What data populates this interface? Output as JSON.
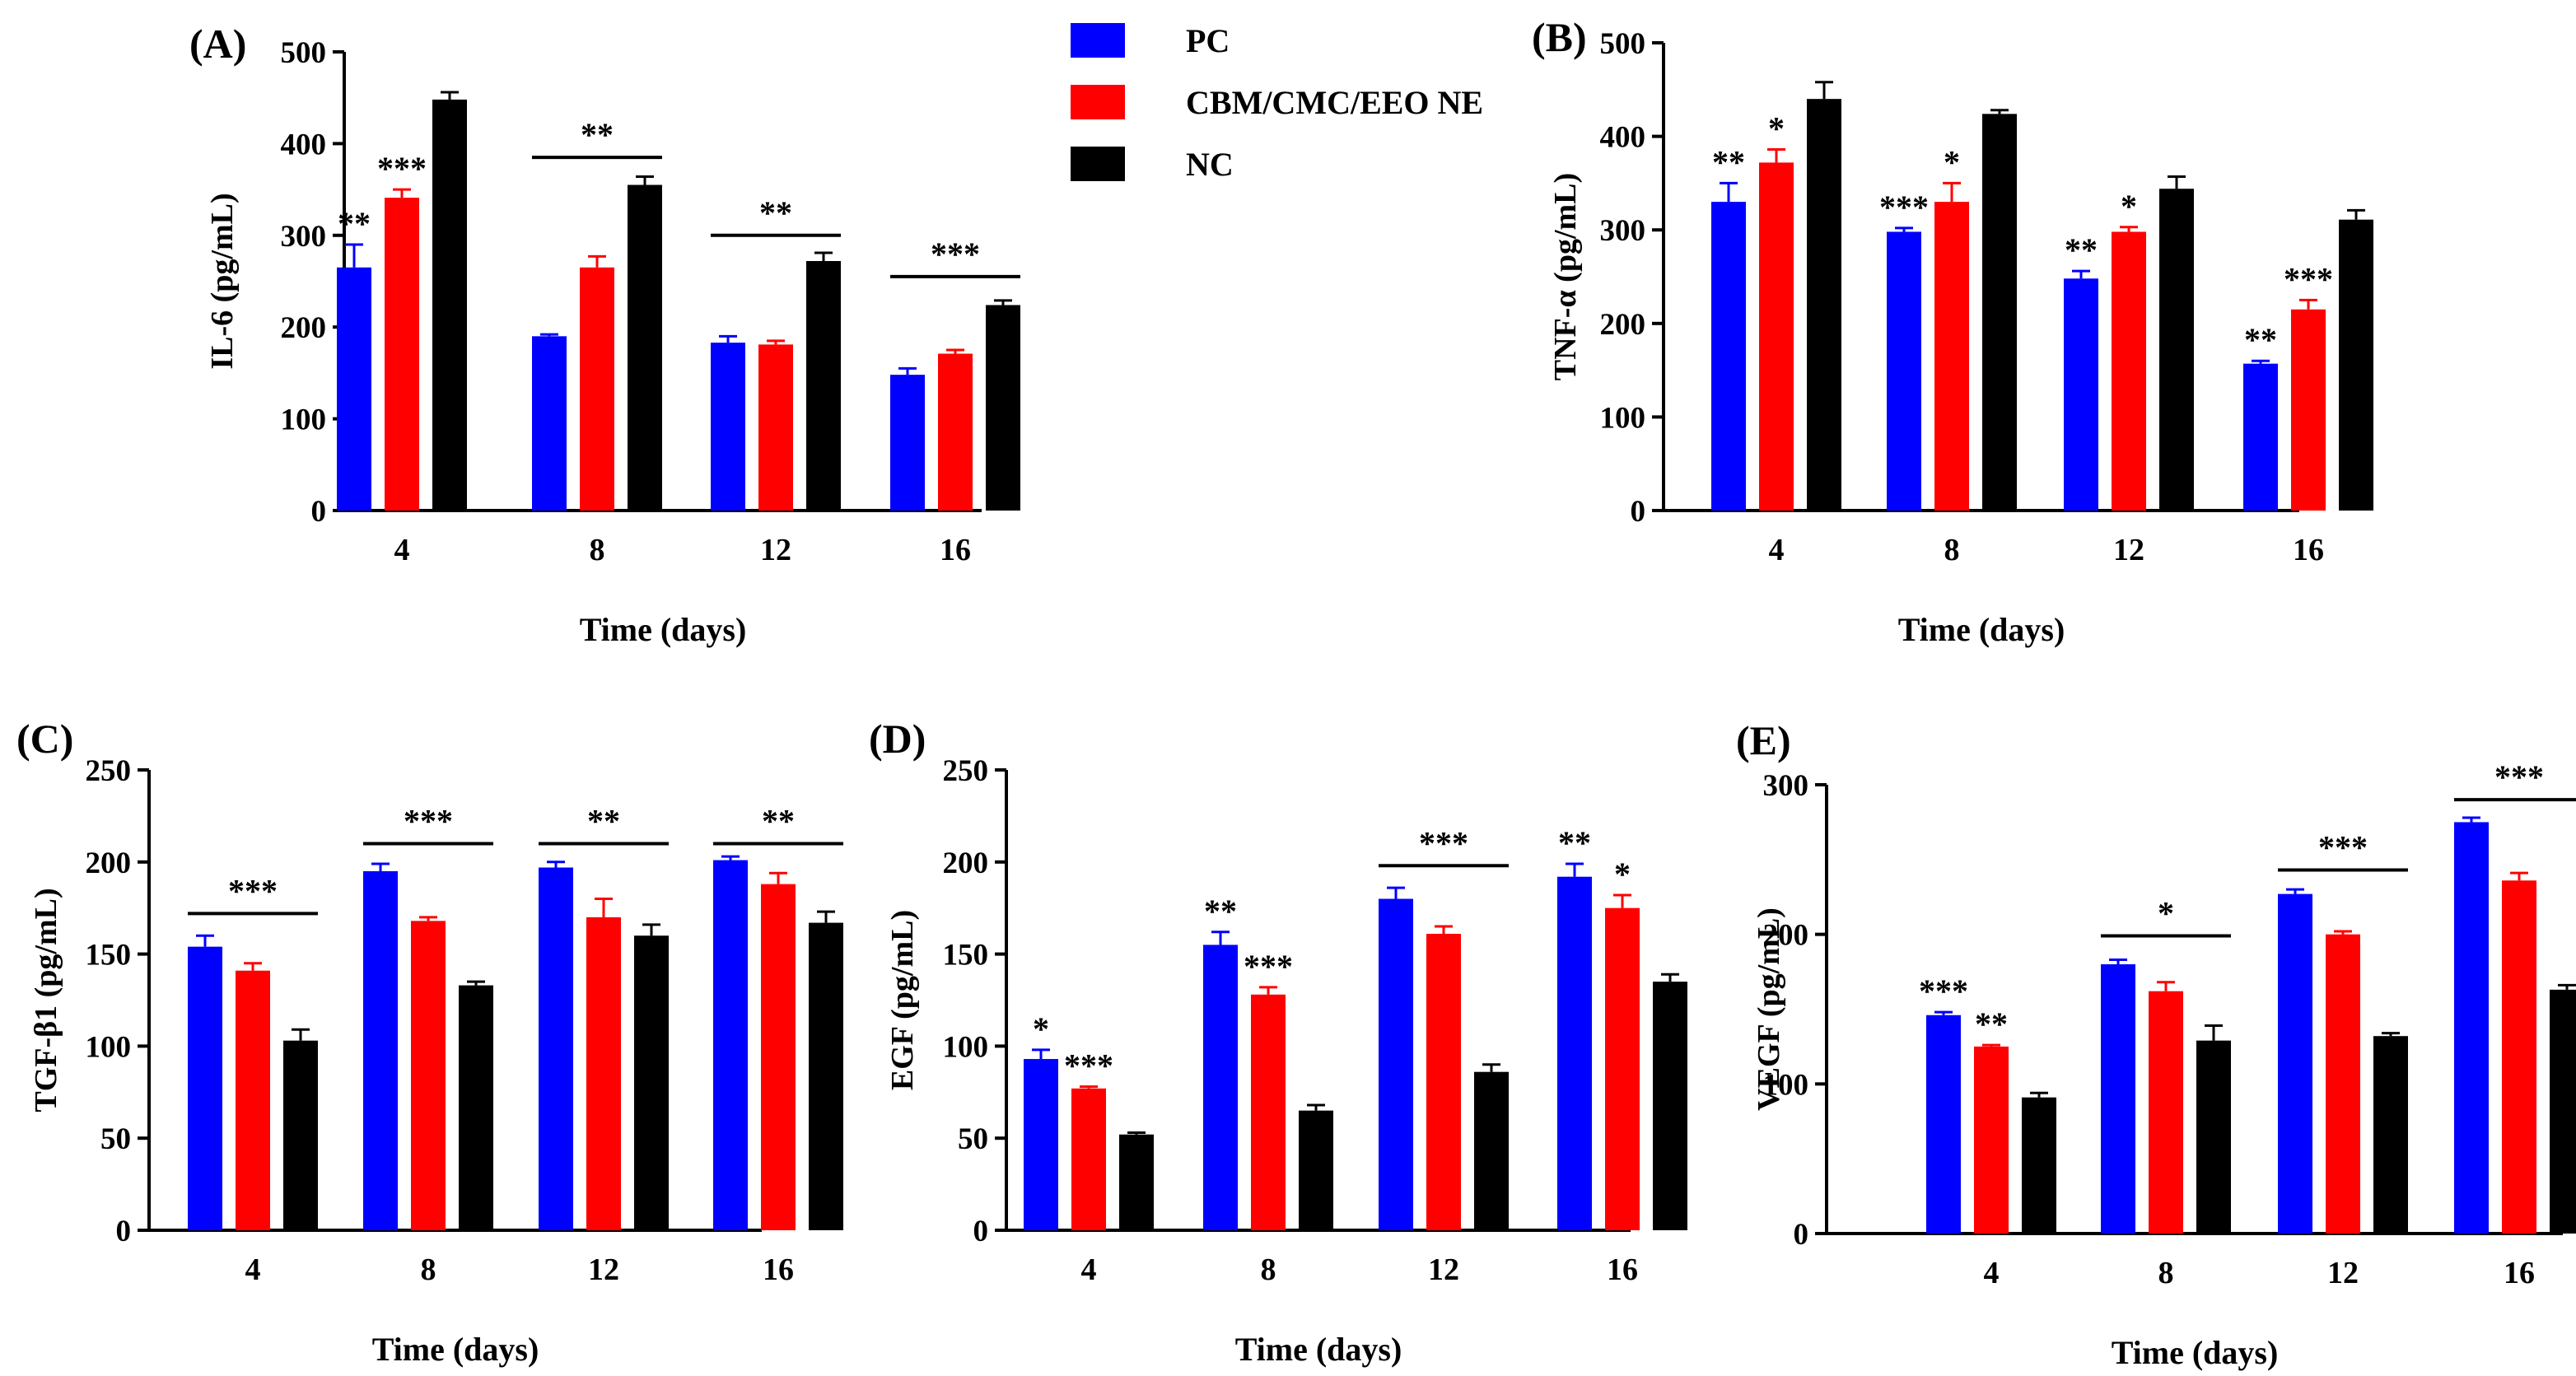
{
  "legend": {
    "entries": [
      {
        "name": "PC",
        "color": "#0000ff"
      },
      {
        "name": "CBM/CMC/EEO NE",
        "color": "#ff0000"
      },
      {
        "name": "NC",
        "color": "#000000"
      }
    ]
  },
  "chart_data": [
    {
      "id": "A",
      "type": "bar",
      "panel_label": "(A)",
      "xlabel": "Time (days)",
      "ylabel": "IL-6 (pg/mL)",
      "categories": [
        "4",
        "8",
        "12",
        "16"
      ],
      "ylim": [
        0,
        500
      ],
      "yticks": [
        0,
        100,
        200,
        300,
        400,
        500
      ],
      "series": [
        {
          "name": "PC",
          "color": "#0000ff",
          "values": [
            265,
            190,
            183,
            148
          ],
          "errors": [
            25,
            2,
            7,
            7
          ],
          "stars": [
            "**",
            "",
            "",
            ""
          ]
        },
        {
          "name": "CBM/CMC/EEO NE",
          "color": "#ff0000",
          "values": [
            341,
            265,
            181,
            171
          ],
          "errors": [
            9,
            12,
            4,
            4
          ],
          "stars": [
            "***",
            "",
            "",
            ""
          ]
        },
        {
          "name": "NC",
          "color": "#000000",
          "values": [
            448,
            355,
            272,
            224
          ],
          "errors": [
            8,
            9,
            9,
            5
          ],
          "stars": [
            "",
            "",
            "",
            ""
          ]
        }
      ],
      "brackets": [
        {
          "category": 1,
          "label": "**",
          "value": 385
        },
        {
          "category": 2,
          "label": "**",
          "value": 300
        },
        {
          "category": 3,
          "label": "***",
          "value": 255
        }
      ]
    },
    {
      "id": "B",
      "type": "bar",
      "panel_label": "(B)",
      "xlabel": "Time (days)",
      "ylabel": "TNF-α (pg/mL)",
      "categories": [
        "4",
        "8",
        "12",
        "16"
      ],
      "ylim": [
        0,
        500
      ],
      "yticks": [
        0,
        100,
        200,
        300,
        400,
        500
      ],
      "series": [
        {
          "name": "PC",
          "color": "#0000ff",
          "values": [
            330,
            298,
            248,
            157
          ],
          "errors": [
            20,
            4,
            8,
            3
          ],
          "stars": [
            "**",
            "***",
            "**",
            "**"
          ]
        },
        {
          "name": "CBM/CMC/EEO NE",
          "color": "#ff0000",
          "values": [
            372,
            330,
            298,
            215
          ],
          "errors": [
            14,
            20,
            5,
            10
          ],
          "stars": [
            "*",
            "*",
            "*",
            "***"
          ]
        },
        {
          "name": "NC",
          "color": "#000000",
          "values": [
            440,
            424,
            344,
            311
          ],
          "errors": [
            18,
            4,
            13,
            10
          ],
          "stars": [
            "",
            "",
            "",
            ""
          ]
        }
      ],
      "brackets": []
    },
    {
      "id": "C",
      "type": "bar",
      "panel_label": "(C)",
      "xlabel": "Time (days)",
      "ylabel": "TGF-β1 (pg/mL)",
      "categories": [
        "4",
        "8",
        "12",
        "16"
      ],
      "ylim": [
        0,
        250
      ],
      "yticks": [
        0,
        50,
        100,
        150,
        200,
        250
      ],
      "series": [
        {
          "name": "PC",
          "color": "#0000ff",
          "values": [
            154,
            195,
            197,
            201
          ],
          "errors": [
            6,
            4,
            3,
            2
          ],
          "stars": [
            "",
            "",
            "",
            ""
          ]
        },
        {
          "name": "CBM/CMC/EEO NE",
          "color": "#ff0000",
          "values": [
            141,
            168,
            170,
            188
          ],
          "errors": [
            4,
            2,
            10,
            6
          ],
          "stars": [
            "",
            "",
            "",
            ""
          ]
        },
        {
          "name": "NC",
          "color": "#000000",
          "values": [
            103,
            133,
            160,
            167
          ],
          "errors": [
            6,
            2,
            6,
            6
          ],
          "stars": [
            "",
            "",
            "",
            ""
          ]
        }
      ],
      "brackets": [
        {
          "category": 0,
          "label": "***",
          "value": 172
        },
        {
          "category": 1,
          "label": "***",
          "value": 210
        },
        {
          "category": 2,
          "label": "**",
          "value": 210
        },
        {
          "category": 3,
          "label": "**",
          "value": 210
        }
      ]
    },
    {
      "id": "D",
      "type": "bar",
      "panel_label": "(D)",
      "xlabel": "Time (days)",
      "ylabel": "EGF (pg/mL)",
      "categories": [
        "4",
        "8",
        "12",
        "16"
      ],
      "ylim": [
        0,
        250
      ],
      "yticks": [
        0,
        50,
        100,
        150,
        200,
        250
      ],
      "series": [
        {
          "name": "PC",
          "color": "#0000ff",
          "values": [
            93,
            155,
            180,
            192
          ],
          "errors": [
            5,
            7,
            6,
            7
          ],
          "stars": [
            "*",
            "**",
            "",
            "**"
          ]
        },
        {
          "name": "CBM/CMC/EEO NE",
          "color": "#ff0000",
          "values": [
            77,
            128,
            161,
            175
          ],
          "errors": [
            1,
            4,
            4,
            7
          ],
          "stars": [
            "***",
            "***",
            "",
            "*"
          ]
        },
        {
          "name": "NC",
          "color": "#000000",
          "values": [
            52,
            65,
            86,
            135
          ],
          "errors": [
            1,
            3,
            4,
            4
          ],
          "stars": [
            "",
            "",
            "",
            ""
          ]
        }
      ],
      "brackets": [
        {
          "category": 2,
          "label": "***",
          "value": 198
        }
      ]
    },
    {
      "id": "E",
      "type": "bar",
      "panel_label": "(E)",
      "xlabel": "Time (days)",
      "ylabel": "VEGF (pg/mL)",
      "categories": [
        "4",
        "8",
        "12",
        "16"
      ],
      "ylim": [
        0,
        300
      ],
      "yticks": [
        0,
        100,
        200,
        300
      ],
      "series": [
        {
          "name": "PC",
          "color": "#0000ff",
          "values": [
            146,
            180,
            227,
            275
          ],
          "errors": [
            2,
            3,
            3,
            3
          ],
          "stars": [
            "***",
            "",
            "",
            ""
          ]
        },
        {
          "name": "CBM/CMC/EEO NE",
          "color": "#ff0000",
          "values": [
            125,
            162,
            200,
            236
          ],
          "errors": [
            1,
            6,
            2,
            5
          ],
          "stars": [
            "**",
            "",
            "",
            ""
          ]
        },
        {
          "name": "NC",
          "color": "#000000",
          "values": [
            91,
            129,
            132,
            163
          ],
          "errors": [
            3,
            10,
            2,
            3
          ],
          "stars": [
            "",
            "",
            "",
            ""
          ]
        }
      ],
      "brackets": [
        {
          "category": 1,
          "label": "*",
          "value": 199
        },
        {
          "category": 2,
          "label": "***",
          "value": 243
        },
        {
          "category": 3,
          "label": "***",
          "value": 290
        }
      ]
    }
  ]
}
